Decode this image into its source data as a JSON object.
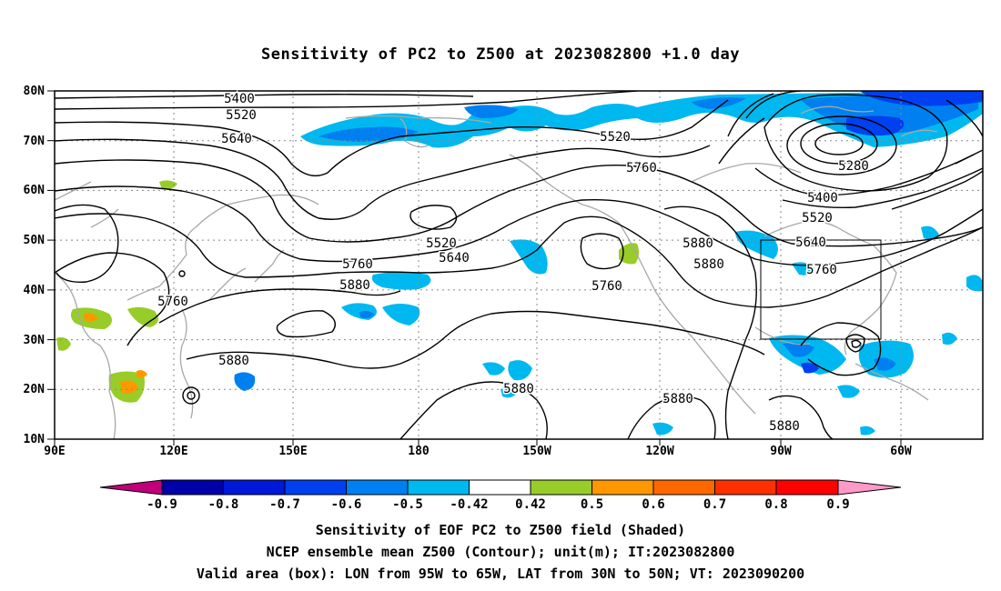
{
  "title": "Sensitivity of PC2 to Z500 at 2023082800 +1.0 day",
  "lat_labels": [
    "80N",
    "70N",
    "60N",
    "50N",
    "40N",
    "30N",
    "20N",
    "10N"
  ],
  "lon_labels": [
    "90E",
    "120E",
    "150E",
    "180",
    "150W",
    "120W",
    "90W",
    "60W"
  ],
  "contour_labels": [
    "5400",
    "5520",
    "5640",
    "5520",
    "5760",
    "5280",
    "5400",
    "5520",
    "5640",
    "5760",
    "5880",
    "5880",
    "5520",
    "5640",
    "5760",
    "5880",
    "5760",
    "5760",
    "5880",
    "5880",
    "5880",
    "5880"
  ],
  "colorbar": {
    "tick_labels": [
      "-0.9",
      "-0.8",
      "-0.7",
      "-0.6",
      "-0.5",
      "-0.42",
      "0.42",
      "0.5",
      "0.6",
      "0.7",
      "0.8",
      "0.9"
    ],
    "colors": [
      "#0000a8",
      "#0018d8",
      "#0040f0",
      "#0080f0",
      "#00b8f0",
      "#ffffff",
      "#98cc28",
      "#ff9800",
      "#ff6800",
      "#ff3000",
      "#ff0000"
    ],
    "under_color": "#c0007a",
    "over_color": "#ff99c8"
  },
  "captions": [
    "Sensitivity of EOF PC2 to Z500 field (Shaded)",
    "NCEP ensemble mean Z500 (Contour); unit(m); IT:2023082800",
    "Valid area (box): LON from 95W to 65W, LAT from 30N to 50N; VT: 2023090200"
  ]
}
